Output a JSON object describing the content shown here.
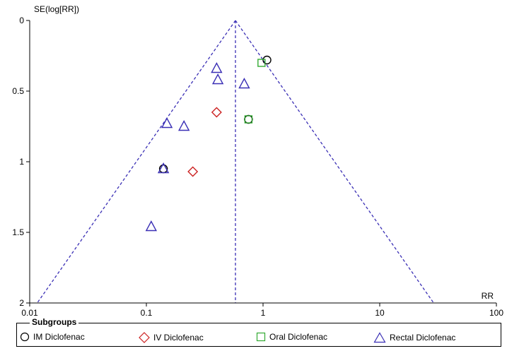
{
  "chart_data": {
    "type": "scatter",
    "title": "",
    "xlabel": "RR",
    "ylabel": "SE(log[RR])",
    "x_scale": "log",
    "xlim": [
      0.01,
      100
    ],
    "ylim": [
      0,
      2
    ],
    "y_inverted": true,
    "x_ticks": [
      "0.01",
      "0.1",
      "1",
      "10",
      "100"
    ],
    "x_tick_values": [
      0.01,
      0.1,
      1,
      10,
      100
    ],
    "y_ticks": [
      "0",
      "0.5",
      "1",
      "1.5",
      "2"
    ],
    "y_tick_values": [
      0,
      0.5,
      1,
      1.5,
      2
    ],
    "pooled_estimate": 0.58,
    "funnel_limits": [
      [
        0.58,
        0
      ],
      [
        0.0116,
        2
      ],
      [
        29,
        2
      ]
    ],
    "legend_title": "Subgroups",
    "legend_position": "bottom",
    "series": [
      {
        "name": "IM Diclofenac",
        "marker": "circle",
        "color": "#000000",
        "points": [
          {
            "x": 1.08,
            "y": 0.28
          },
          {
            "x": 0.75,
            "y": 0.7
          },
          {
            "x": 0.14,
            "y": 1.05
          }
        ]
      },
      {
        "name": "IV Diclofenac",
        "marker": "diamond",
        "color": "#cc2222",
        "points": [
          {
            "x": 0.4,
            "y": 0.65
          },
          {
            "x": 0.25,
            "y": 1.07
          }
        ]
      },
      {
        "name": "Oral Diclofenac",
        "marker": "square",
        "color": "#33aa33",
        "points": [
          {
            "x": 0.97,
            "y": 0.3
          },
          {
            "x": 0.75,
            "y": 0.7
          }
        ]
      },
      {
        "name": "Rectal Diclofenac",
        "marker": "triangle",
        "color": "#3a2fb5",
        "points": [
          {
            "x": 0.4,
            "y": 0.34
          },
          {
            "x": 0.41,
            "y": 0.42
          },
          {
            "x": 0.69,
            "y": 0.45
          },
          {
            "x": 0.15,
            "y": 0.73
          },
          {
            "x": 0.21,
            "y": 0.75
          },
          {
            "x": 0.14,
            "y": 1.05
          },
          {
            "x": 0.11,
            "y": 1.46
          }
        ]
      }
    ]
  },
  "colors": {
    "funnel_line": "#3a2fb5",
    "axis": "#000000"
  }
}
